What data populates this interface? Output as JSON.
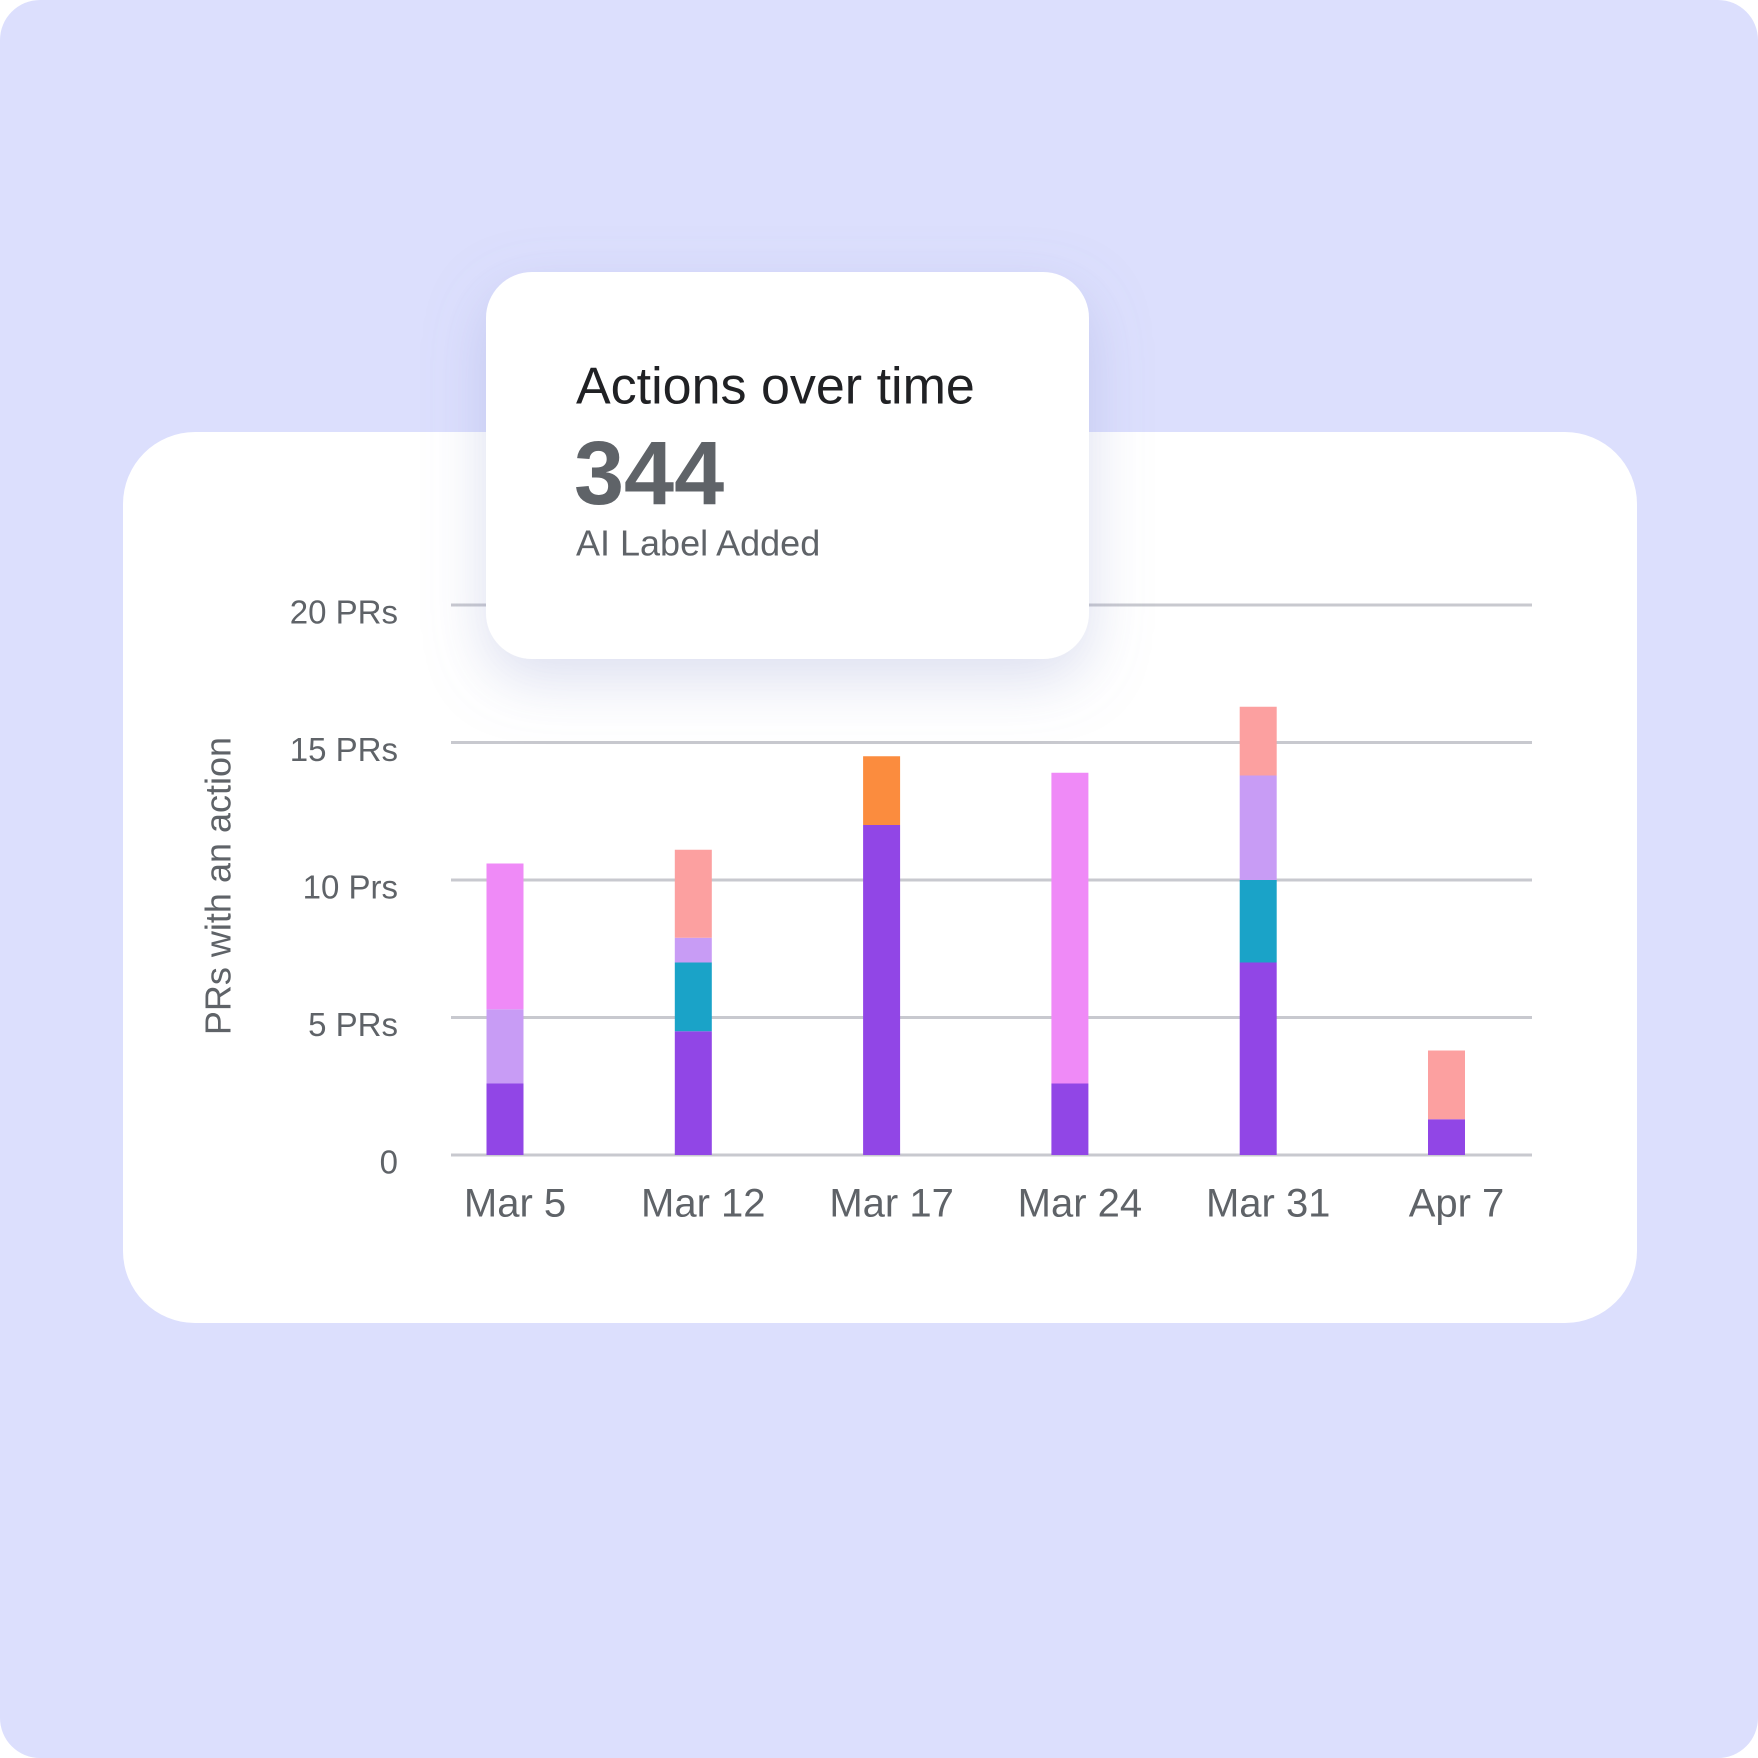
{
  "chart_data": {
    "type": "stacked_bar",
    "title": "Actions over time",
    "total": 344,
    "subtitle": "AI Label Added",
    "y_label": "PRs with an action",
    "categories": [
      "Mar 5",
      "Mar 12",
      "Mar 17",
      "Mar 24",
      "Mar 31",
      "Apr 7"
    ],
    "series": [
      {
        "color": "#9146e6",
        "values": [
          2.6,
          4.5,
          12,
          2.6,
          7.0,
          1.3
        ]
      },
      {
        "color": "#1aa3c8",
        "values": [
          null,
          2.5,
          null,
          null,
          3.0,
          null
        ]
      },
      {
        "color": "#c89cf5",
        "values": [
          2.7,
          0.9,
          null,
          null,
          3.8,
          null
        ]
      },
      {
        "color": "#fca0a0",
        "values": [
          null,
          3.2,
          null,
          null,
          2.5,
          2.5
        ]
      },
      {
        "color": "#ef8af7",
        "values": [
          5.3,
          null,
          null,
          11.3,
          null,
          null
        ]
      },
      {
        "color": "#fb8c3e",
        "values": [
          null,
          null,
          2.5,
          null,
          null,
          null
        ]
      }
    ],
    "ylim": [
      0,
      20
    ],
    "yticks": [
      0,
      {
        "value": 5,
        "label": "5 PRs"
      },
      {
        "value": 10,
        "label": "10 Prs"
      },
      {
        "value": 15,
        "label": "15 PRs"
      },
      {
        "value": 20,
        "label": "20 PRs"
      }
    ],
    "grid": true
  }
}
